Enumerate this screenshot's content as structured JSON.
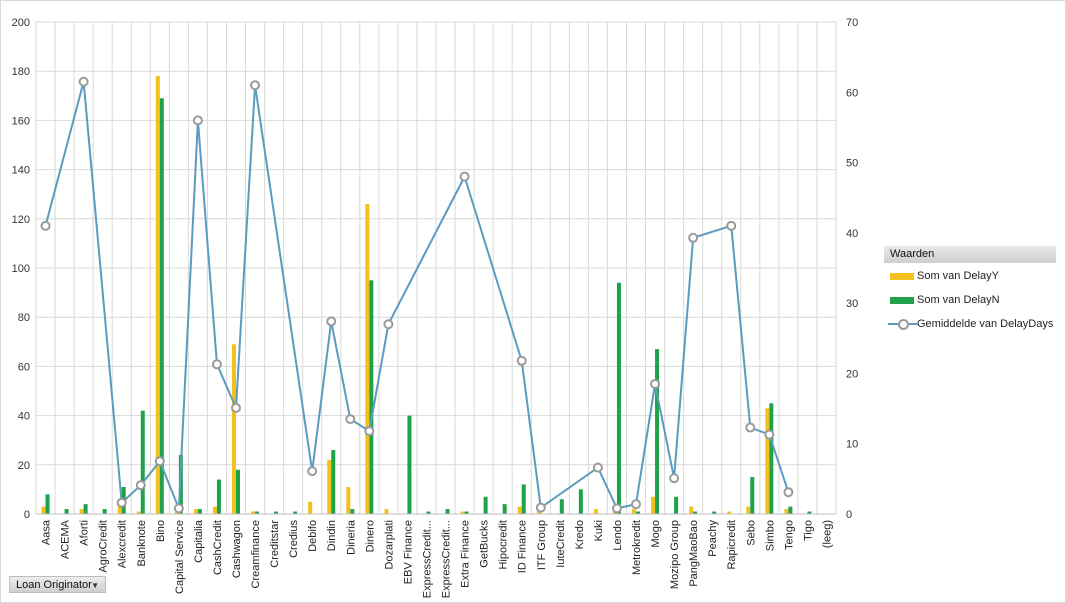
{
  "chart_data": {
    "type": "bar+line",
    "categories": [
      "Aasa",
      "ACEMA",
      "Aforti",
      "AgroCredit",
      "Alexcredit",
      "Banknote",
      "Bino",
      "Capital Service",
      "Capitalia",
      "CashCredit",
      "Cashwagon",
      "Creamfinance",
      "Creditstar",
      "Credius",
      "Debifo",
      "Dindin",
      "Dineria",
      "Dinero",
      "Dozarplati",
      "EBV Finance",
      "ExpressCredit...",
      "ExpressCredit...",
      "Extra Finance",
      "GetBucks",
      "Hipocredit",
      "ID Finance",
      "ITF Group",
      "IuteCredit",
      "Kredo",
      "Kuki",
      "Lendo",
      "Metrokredit",
      "Mogo",
      "Mozipo Group",
      "PangMaoBao",
      "Peachy",
      "Rapicredit",
      "Sebo",
      "Simbo",
      "Tengo",
      "Tigo",
      "(leeg)"
    ],
    "series": [
      {
        "name": "Som van DelayY",
        "axis": "left",
        "kind": "bar",
        "color": "#f2c11e",
        "values": [
          3,
          0,
          2,
          0,
          4,
          1,
          178,
          1,
          2,
          3,
          69,
          1,
          0,
          0,
          5,
          22,
          11,
          126,
          2,
          0,
          0,
          0,
          1,
          0,
          0,
          3,
          1,
          0,
          0,
          2,
          1,
          2,
          7,
          0,
          3,
          0,
          1,
          3,
          43,
          2,
          0,
          0
        ]
      },
      {
        "name": "Som van DelayN",
        "axis": "left",
        "kind": "bar",
        "color": "#1fa24a",
        "values": [
          8,
          2,
          4,
          2,
          11,
          42,
          169,
          24,
          2,
          14,
          18,
          1,
          1,
          1,
          0,
          26,
          2,
          95,
          0,
          40,
          1,
          2,
          1,
          7,
          4,
          12,
          0,
          6,
          10,
          0,
          94,
          1,
          67,
          7,
          1,
          1,
          0,
          15,
          45,
          3,
          1,
          0
        ]
      },
      {
        "name": "Gemiddelde van DelayDays",
        "axis": "right",
        "kind": "line",
        "color": "#5b9bbf",
        "values": [
          41,
          null,
          61.5,
          null,
          1.6,
          4.1,
          7.5,
          0.8,
          56,
          21.3,
          15.1,
          61,
          null,
          null,
          6.1,
          27.4,
          13.5,
          11.8,
          27,
          null,
          null,
          null,
          48,
          null,
          null,
          21.8,
          0.9,
          null,
          null,
          6.6,
          0.8,
          1.4,
          18.5,
          5.1,
          39.3,
          null,
          41,
          12.3,
          11.3,
          3.1,
          null,
          null
        ]
      }
    ],
    "ylim_left": [
      0,
      200
    ],
    "yticks_left": [
      0,
      20,
      40,
      60,
      80,
      100,
      120,
      140,
      160,
      180,
      200
    ],
    "ylim_right": [
      0,
      70
    ],
    "yticks_right": [
      0,
      10,
      20,
      30,
      40,
      50,
      60,
      70
    ],
    "grid": true,
    "legend_title": "Waarden",
    "legend_position": "right"
  },
  "colors": {
    "line": "#5b9bbf",
    "bar_y": "#f2c11e",
    "bar_n": "#1fa24a",
    "grid": "#d9d9d9"
  },
  "field_button": {
    "label": "Loan Originator",
    "icon": "dropdown-arrow-icon",
    "arrow": "▼"
  }
}
